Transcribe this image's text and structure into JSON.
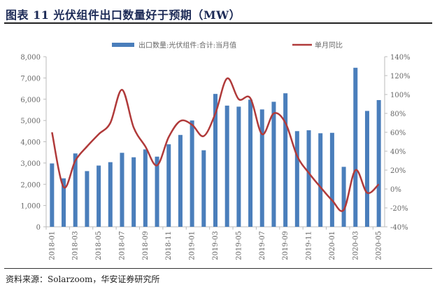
{
  "title": "图表 11 光伏组件出口数量好于预期（MW）",
  "source": "资料来源：Solarzoom，华安证券研究所",
  "chart_data": {
    "type": "bar+line",
    "categories": [
      "2018-01",
      "2018-02",
      "2018-03",
      "2018-04",
      "2018-05",
      "2018-06",
      "2018-07",
      "2018-08",
      "2018-09",
      "2018-10",
      "2018-11",
      "2018-12",
      "2019-01",
      "2019-02",
      "2019-03",
      "2019-04",
      "2019-05",
      "2019-06",
      "2019-07",
      "2019-08",
      "2019-09",
      "2019-10",
      "2019-11",
      "2019-12",
      "2020-01",
      "2020-02",
      "2020-03",
      "2020-04",
      "2020-05"
    ],
    "x_tick_labels": [
      "2018-01",
      "2018-03",
      "2018-05",
      "2018-07",
      "2018-09",
      "2018-11",
      "2019-01",
      "2019-03",
      "2019-05",
      "2019-07",
      "2019-09",
      "2019-11",
      "2020-01",
      "2020-03",
      "2020-05"
    ],
    "series": [
      {
        "name": "出口数量:光伏组件:合计:当月值",
        "type": "bar",
        "axis": "left",
        "color": "#4a7ebb",
        "values": [
          2980,
          2280,
          3450,
          2620,
          2880,
          3040,
          3480,
          3270,
          3640,
          3300,
          3880,
          4320,
          5000,
          3600,
          6250,
          5700,
          5650,
          5980,
          5520,
          5880,
          6280,
          4500,
          4540,
          4400,
          4420,
          2820,
          7480,
          5450,
          5960
        ]
      },
      {
        "name": "单月同比",
        "type": "line",
        "axis": "right",
        "color": "#b03a3a",
        "values": [
          60,
          2,
          30,
          45,
          58,
          70,
          105,
          65,
          45,
          25,
          55,
          72,
          68,
          56,
          80,
          117,
          95,
          96,
          58,
          80,
          70,
          35,
          17,
          2,
          -12,
          -22,
          20,
          -4,
          5
        ]
      }
    ],
    "left_axis": {
      "min": 0,
      "max": 8000,
      "ticks": [
        "0",
        "1,000",
        "2,000",
        "3,000",
        "4,000",
        "5,000",
        "6,000",
        "7,000",
        "8,000"
      ]
    },
    "right_axis": {
      "min": -40,
      "max": 140,
      "unit": "%",
      "ticks": [
        "-40%",
        "-20%",
        "0%",
        "20%",
        "40%",
        "60%",
        "80%",
        "100%",
        "120%",
        "140%"
      ]
    },
    "grid": false,
    "legend": "top"
  }
}
